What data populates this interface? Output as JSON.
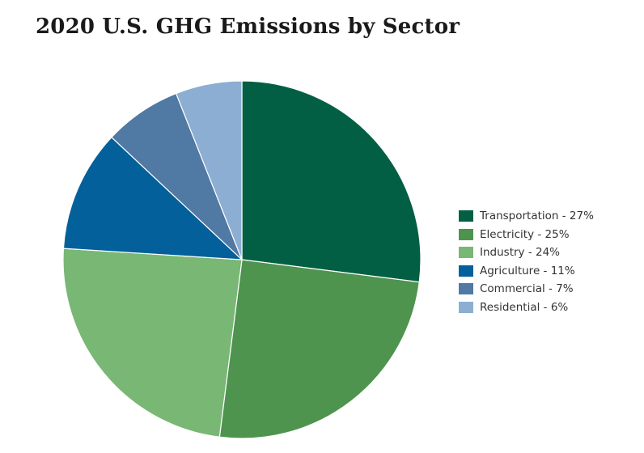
{
  "chart_data": {
    "type": "pie",
    "title": "2020 U.S. GHG Emissions by Sector",
    "legend_position": "right",
    "slices": [
      {
        "label": "Transportation - 27%",
        "name": "Transportation",
        "value": 27,
        "color": "#035f43"
      },
      {
        "label": "Electricity - 25%",
        "name": "Electricity",
        "value": 25,
        "color": "#4e944f"
      },
      {
        "label": "Industry - 24%",
        "name": "Industry",
        "value": 24,
        "color": "#79b774"
      },
      {
        "label": "Agriculture - 11%",
        "name": "Agriculture",
        "value": 11,
        "color": "#03609a"
      },
      {
        "label": "Commercial - 7%",
        "name": "Commercial",
        "value": 7,
        "color": "#5079a4"
      },
      {
        "label": "Residential - 6%",
        "name": "Residential",
        "value": 6,
        "color": "#8daed3"
      }
    ]
  }
}
